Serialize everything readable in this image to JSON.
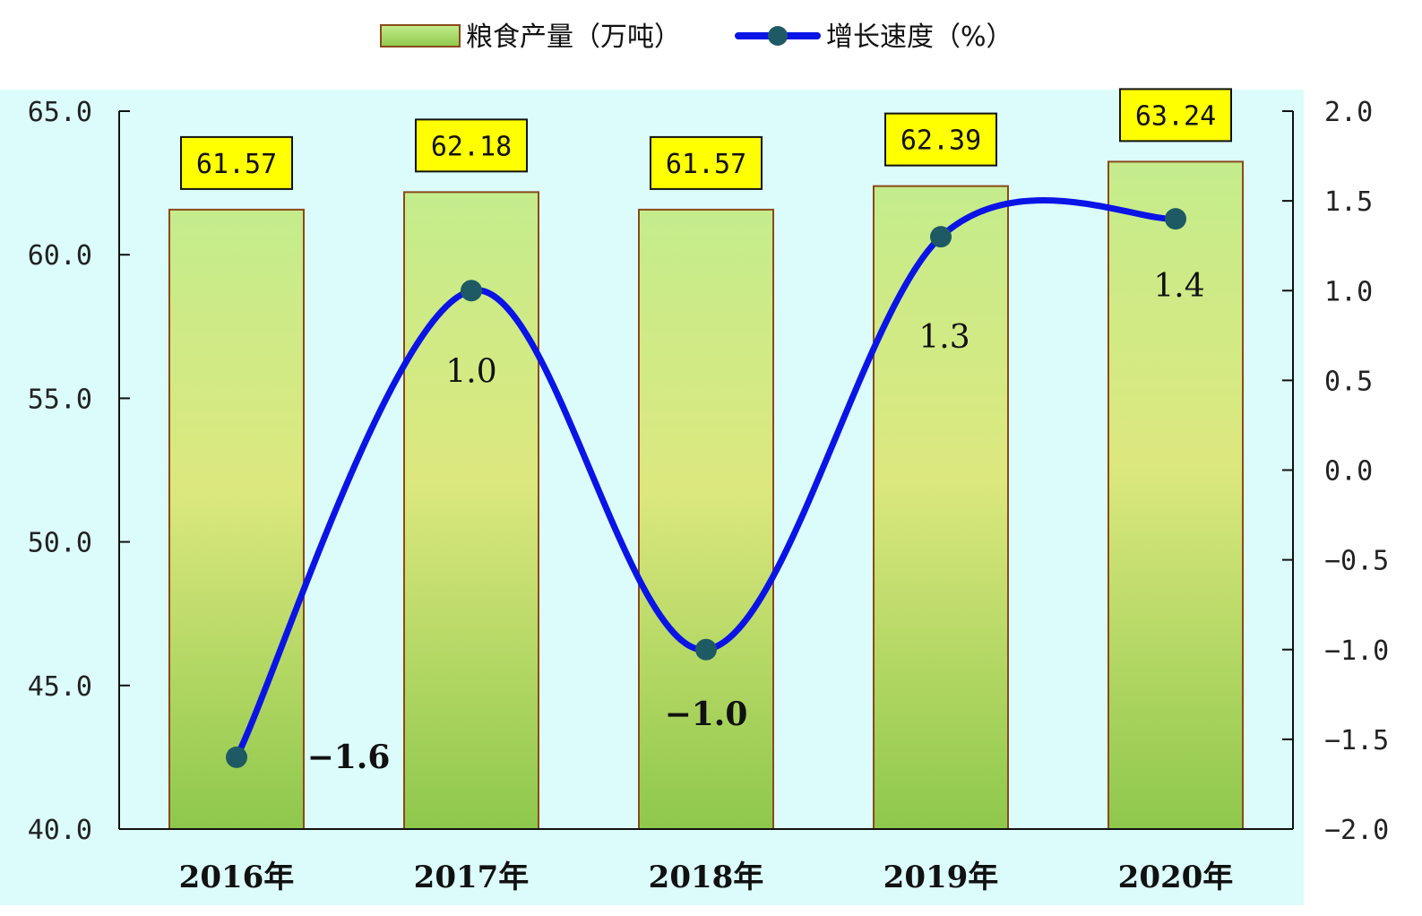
{
  "chart_data": {
    "type": "bar",
    "categories": [
      "2016年",
      "2017年",
      "2018年",
      "2019年",
      "2020年"
    ],
    "series": [
      {
        "name": "粮食产量（万吨）",
        "type": "bar",
        "axis": "left",
        "values": [
          61.57,
          62.18,
          61.57,
          62.39,
          63.24
        ],
        "labels": [
          "61.57",
          "62.18",
          "61.57",
          "62.39",
          "63.24"
        ]
      },
      {
        "name": "增长速度（%）",
        "type": "line",
        "axis": "right",
        "values": [
          -1.6,
          1.0,
          -1.0,
          1.3,
          1.4
        ],
        "labels": [
          "-1.6",
          "1.0",
          "-1.0",
          "1.3",
          "1.4"
        ]
      }
    ],
    "y_left": {
      "min": 40,
      "max": 65,
      "ticks": [
        "40.0",
        "45.0",
        "50.0",
        "55.0",
        "60.0",
        "65.0"
      ]
    },
    "y_right": {
      "min": -2,
      "max": 2,
      "ticks": [
        "-2.0",
        "-1.5",
        "-1.0",
        "-0.5",
        "0.0",
        "0.5",
        "1.0",
        "1.5",
        "2.0"
      ]
    },
    "legend": "top-center",
    "grid": false,
    "colors": {
      "plot_bg": "#dcfcfc",
      "bar_top": "#c4ec8c",
      "bar_mid": "#dce87e",
      "bar_bottom": "#8ec84c",
      "bar_border": "#8a4a1a",
      "line": "#0a14e6",
      "marker": "#1e5a64",
      "label_box": "#ffff00"
    }
  }
}
